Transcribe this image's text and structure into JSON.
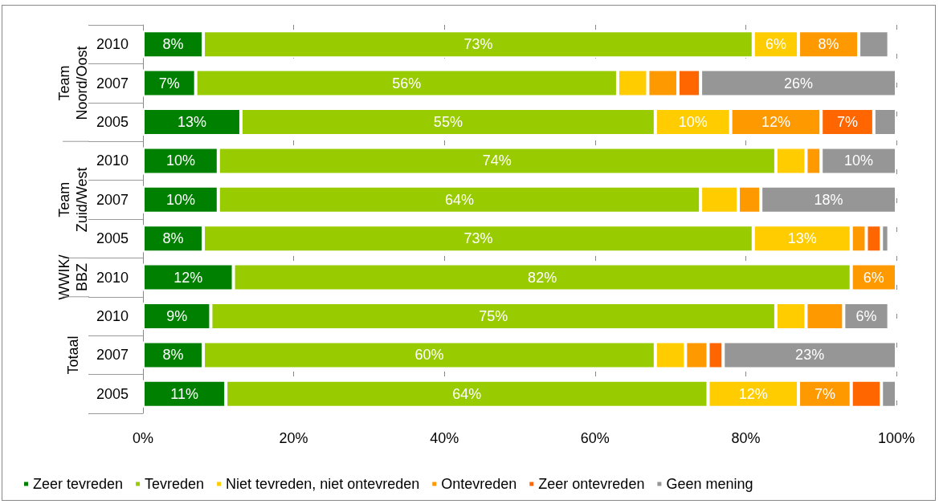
{
  "chart_data": {
    "type": "bar",
    "orientation": "horizontal",
    "stacked": true,
    "categories": [
      "2010",
      "2007",
      "2005",
      "2010",
      "2007",
      "2005",
      "2010",
      "2010",
      "2007",
      "2005"
    ],
    "series": [
      {
        "name": "Zeer tevreden",
        "color": "#008000",
        "values": [
          8,
          7,
          13,
          10,
          10,
          8,
          12,
          9,
          8,
          11
        ],
        "value_labels": [
          "8%",
          "7%",
          "13%",
          "10%",
          "10%",
          "8%",
          "12%",
          "9%",
          "8%",
          "11%"
        ]
      },
      {
        "name": "Tevreden",
        "color": "#99cc00",
        "values": [
          73,
          56,
          55,
          74,
          64,
          73,
          82,
          75,
          60,
          64
        ],
        "value_labels": [
          "73%",
          "56%",
          "55%",
          "74%",
          "64%",
          "73%",
          "82%",
          "75%",
          "60%",
          "64%"
        ]
      },
      {
        "name": "Niet tevreden, niet ontevreden",
        "color": "#ffcc00",
        "values": [
          6,
          4,
          10,
          4,
          5,
          13,
          null,
          4,
          4,
          12
        ],
        "value_labels": [
          "6%",
          null,
          "10%",
          null,
          null,
          "13%",
          null,
          null,
          null,
          "12%"
        ]
      },
      {
        "name": "Ontevreden",
        "color": "#ff9900",
        "values": [
          8,
          4,
          12,
          2,
          3,
          2,
          6,
          5,
          3,
          7
        ],
        "value_labels": [
          "8%",
          null,
          "12%",
          null,
          null,
          null,
          "6%",
          null,
          null,
          "7%"
        ]
      },
      {
        "name": "Zeer ontevreden",
        "color": "#ff6600",
        "values": [
          null,
          3,
          7,
          null,
          null,
          2,
          null,
          null,
          2,
          4
        ],
        "value_labels": [
          null,
          null,
          "7%",
          null,
          null,
          null,
          null,
          null,
          null,
          null
        ]
      },
      {
        "name": "Geen mening",
        "color": "#969696",
        "values": [
          4,
          26,
          3,
          10,
          18,
          1,
          null,
          6,
          23,
          2
        ],
        "value_labels": [
          null,
          "26%",
          null,
          "10%",
          "18%",
          null,
          null,
          "6%",
          "23%",
          null
        ]
      }
    ],
    "xlim": [
      0,
      100
    ],
    "xticks": [
      {
        "value": 0,
        "label": "0%"
      },
      {
        "value": 20,
        "label": "20%"
      },
      {
        "value": 40,
        "label": "40%"
      },
      {
        "value": 60,
        "label": "60%"
      },
      {
        "value": 80,
        "label": "80%"
      },
      {
        "value": 100,
        "label": "100%"
      }
    ],
    "grid": "x",
    "legend": "bottom",
    "annotations": [
      "Team\nNoord/Oost",
      "Team\nZuid/West",
      "WWIK/\nBBZ",
      "Totaal"
    ]
  }
}
